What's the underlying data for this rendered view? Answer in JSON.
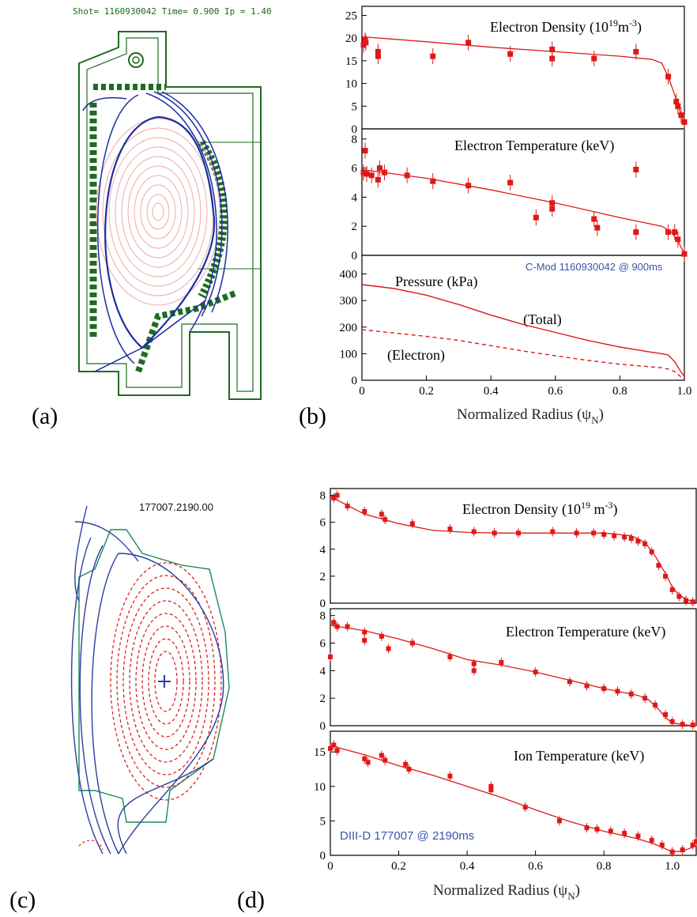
{
  "colors": {
    "data": "#e01818",
    "wall": "#1f6b1f",
    "flux": "#1a2fa0",
    "inner": "#f0a8a8",
    "blue_text": "#3b55a8"
  },
  "panel_labels": {
    "a": "(a)",
    "b": "(b)",
    "c": "(c)",
    "d": "(d)"
  },
  "panel_a": {
    "header": "Shot=  1160930042   Time= 0.900   Ip = 1.40"
  },
  "panel_c": {
    "label": "177007.2190.00"
  },
  "chart_data": [
    {
      "type": "scatter",
      "panel": "b-top",
      "title": "Electron Density (10^19 m^-3)",
      "ylim": [
        0,
        27
      ],
      "xlim": [
        0,
        1.0
      ],
      "yticks": [
        "0",
        "5",
        "10",
        "15",
        "20",
        "25"
      ],
      "points": [
        [
          0.005,
          18.5
        ],
        [
          0.01,
          19.5
        ],
        [
          0.012,
          19.0
        ],
        [
          0.05,
          17.0
        ],
        [
          0.05,
          16.0
        ],
        [
          0.22,
          16.0
        ],
        [
          0.33,
          19.0
        ],
        [
          0.46,
          16.5
        ],
        [
          0.59,
          17.5
        ],
        [
          0.59,
          15.5
        ],
        [
          0.72,
          15.5
        ],
        [
          0.85,
          17.0
        ],
        [
          0.95,
          11.5
        ],
        [
          0.975,
          6.0
        ],
        [
          0.98,
          5.0
        ],
        [
          0.99,
          3.0
        ],
        [
          1.0,
          1.5
        ]
      ],
      "fit": [
        [
          0,
          20.3
        ],
        [
          0.2,
          19.2
        ],
        [
          0.4,
          18.0
        ],
        [
          0.6,
          17.0
        ],
        [
          0.8,
          16.0
        ],
        [
          0.9,
          15.3
        ],
        [
          0.93,
          14.5
        ],
        [
          0.95,
          11.5
        ],
        [
          0.97,
          7.5
        ],
        [
          0.99,
          3.0
        ],
        [
          1.0,
          1.5
        ]
      ]
    },
    {
      "type": "scatter",
      "panel": "b-mid",
      "title": "Electron Temperature (keV)",
      "ylim": [
        0,
        8.7
      ],
      "xlim": [
        0,
        1.0
      ],
      "yticks": [
        "0",
        "2",
        "4",
        "6",
        "8"
      ],
      "points": [
        [
          0.005,
          5.7
        ],
        [
          0.01,
          7.2
        ],
        [
          0.015,
          5.6
        ],
        [
          0.03,
          5.5
        ],
        [
          0.05,
          5.2
        ],
        [
          0.055,
          6.0
        ],
        [
          0.07,
          5.7
        ],
        [
          0.14,
          5.5
        ],
        [
          0.22,
          5.1
        ],
        [
          0.33,
          4.8
        ],
        [
          0.46,
          5.0
        ],
        [
          0.54,
          2.6
        ],
        [
          0.59,
          3.6
        ],
        [
          0.59,
          3.2
        ],
        [
          0.72,
          2.5
        ],
        [
          0.73,
          1.9
        ],
        [
          0.85,
          5.9
        ],
        [
          0.85,
          1.6
        ],
        [
          0.95,
          1.6
        ],
        [
          0.97,
          1.6
        ],
        [
          0.98,
          1.1
        ],
        [
          1.0,
          0.1
        ]
      ],
      "fit": [
        [
          0,
          5.9
        ],
        [
          0.2,
          5.3
        ],
        [
          0.4,
          4.5
        ],
        [
          0.6,
          3.6
        ],
        [
          0.8,
          2.6
        ],
        [
          0.93,
          2.0
        ],
        [
          0.96,
          1.6
        ],
        [
          0.98,
          1.0
        ],
        [
          1.0,
          0.1
        ]
      ]
    },
    {
      "type": "line",
      "panel": "b-bot",
      "title": "Pressure (kPa)",
      "annotations": [
        "(Total)",
        "(Electron)"
      ],
      "note": "C-Mod 1160930042 @ 900ms",
      "ylim": [
        0,
        470
      ],
      "xlim": [
        0,
        1.0
      ],
      "yticks": [
        "0",
        "100",
        "200",
        "300",
        "400"
      ],
      "xticks": [
        "0",
        "0.2",
        "0.4",
        "0.6",
        "0.8",
        "1.0"
      ],
      "xlabel": "Normalized Radius (ψN)",
      "series": [
        {
          "name": "(Total)",
          "style": "solid",
          "x": [
            0,
            0.1,
            0.2,
            0.3,
            0.4,
            0.5,
            0.6,
            0.7,
            0.8,
            0.9,
            0.93,
            0.95,
            0.97,
            0.99,
            1.0
          ],
          "y": [
            360,
            345,
            320,
            285,
            245,
            210,
            180,
            150,
            125,
            105,
            100,
            95,
            70,
            30,
            15
          ]
        },
        {
          "name": "(Electron)",
          "style": "dashed",
          "x": [
            0,
            0.1,
            0.2,
            0.3,
            0.4,
            0.5,
            0.6,
            0.7,
            0.8,
            0.9,
            0.93,
            0.95,
            0.97,
            0.99,
            1.0
          ],
          "y": [
            190,
            178,
            165,
            150,
            130,
            110,
            92,
            75,
            60,
            50,
            47,
            42,
            32,
            12,
            5
          ]
        }
      ]
    },
    {
      "type": "scatter",
      "panel": "d-top",
      "title": "Electron Density (10^19 m^-3)",
      "ylim": [
        0,
        8.5
      ],
      "xlim": [
        0,
        1.07
      ],
      "yticks": [
        "0",
        "2",
        "4",
        "6",
        "8"
      ],
      "points": [
        [
          0.01,
          7.8
        ],
        [
          0.02,
          8.0
        ],
        [
          0.05,
          7.2
        ],
        [
          0.1,
          6.8
        ],
        [
          0.15,
          6.6
        ],
        [
          0.16,
          6.2
        ],
        [
          0.24,
          5.9
        ],
        [
          0.35,
          5.5
        ],
        [
          0.42,
          5.3
        ],
        [
          0.48,
          5.2
        ],
        [
          0.55,
          5.2
        ],
        [
          0.65,
          5.3
        ],
        [
          0.72,
          5.2
        ],
        [
          0.77,
          5.2
        ],
        [
          0.8,
          5.1
        ],
        [
          0.83,
          5.0
        ],
        [
          0.86,
          4.9
        ],
        [
          0.88,
          4.8
        ],
        [
          0.9,
          4.6
        ],
        [
          0.92,
          4.4
        ],
        [
          0.94,
          3.8
        ],
        [
          0.96,
          2.8
        ],
        [
          0.98,
          2.0
        ],
        [
          1.0,
          1.0
        ],
        [
          1.02,
          0.5
        ],
        [
          1.04,
          0.2
        ],
        [
          1.06,
          0.1
        ]
      ],
      "fit": [
        [
          0,
          7.9
        ],
        [
          0.1,
          6.6
        ],
        [
          0.2,
          5.9
        ],
        [
          0.3,
          5.4
        ],
        [
          0.4,
          5.25
        ],
        [
          0.5,
          5.2
        ],
        [
          0.6,
          5.2
        ],
        [
          0.7,
          5.2
        ],
        [
          0.8,
          5.2
        ],
        [
          0.88,
          5.0
        ],
        [
          0.92,
          4.5
        ],
        [
          0.95,
          3.5
        ],
        [
          0.98,
          2.2
        ],
        [
          1.0,
          1.2
        ],
        [
          1.02,
          0.6
        ],
        [
          1.05,
          0.2
        ],
        [
          1.07,
          0.1
        ]
      ]
    },
    {
      "type": "scatter",
      "panel": "d-mid",
      "title": "Electron Temperature (keV)",
      "ylim": [
        0,
        8.5
      ],
      "xlim": [
        0,
        1.07
      ],
      "yticks": [
        "0",
        "2",
        "4",
        "6",
        "8"
      ],
      "points": [
        [
          0.0,
          5.0
        ],
        [
          0.01,
          7.5
        ],
        [
          0.02,
          7.2
        ],
        [
          0.05,
          7.2
        ],
        [
          0.1,
          6.2
        ],
        [
          0.1,
          6.8
        ],
        [
          0.15,
          6.5
        ],
        [
          0.17,
          5.6
        ],
        [
          0.24,
          6.0
        ],
        [
          0.35,
          5.0
        ],
        [
          0.42,
          4.5
        ],
        [
          0.42,
          4.0
        ],
        [
          0.5,
          4.6
        ],
        [
          0.6,
          3.9
        ],
        [
          0.7,
          3.2
        ],
        [
          0.75,
          2.9
        ],
        [
          0.8,
          2.7
        ],
        [
          0.84,
          2.5
        ],
        [
          0.88,
          2.3
        ],
        [
          0.92,
          2.0
        ],
        [
          0.95,
          1.5
        ],
        [
          0.98,
          0.8
        ],
        [
          1.0,
          0.3
        ],
        [
          1.03,
          0.1
        ],
        [
          1.06,
          0.05
        ]
      ],
      "fit": [
        [
          0,
          7.3
        ],
        [
          0.1,
          6.9
        ],
        [
          0.2,
          6.3
        ],
        [
          0.3,
          5.6
        ],
        [
          0.4,
          4.8
        ],
        [
          0.5,
          4.4
        ],
        [
          0.6,
          3.9
        ],
        [
          0.7,
          3.3
        ],
        [
          0.8,
          2.7
        ],
        [
          0.9,
          2.2
        ],
        [
          0.93,
          1.9
        ],
        [
          0.96,
          1.2
        ],
        [
          0.98,
          0.6
        ],
        [
          1.0,
          0.2
        ],
        [
          1.04,
          0.05
        ],
        [
          1.07,
          0.0
        ]
      ]
    },
    {
      "type": "scatter",
      "panel": "d-bot",
      "title": "Ion Temperature (keV)",
      "note": "DIII-D 177007 @ 2190ms",
      "ylim": [
        0,
        18
      ],
      "xlim": [
        0,
        1.07
      ],
      "yticks": [
        "0",
        "5",
        "10",
        "15"
      ],
      "xticks": [
        "0",
        "0.2",
        "0.4",
        "0.6",
        "0.8",
        "1.0"
      ],
      "xlabel": "Normalized Radius (ψN)",
      "points": [
        [
          0.0,
          15.5
        ],
        [
          0.01,
          16.0
        ],
        [
          0.02,
          15.2
        ],
        [
          0.1,
          14.0
        ],
        [
          0.11,
          13.5
        ],
        [
          0.15,
          14.5
        ],
        [
          0.16,
          13.8
        ],
        [
          0.22,
          13.2
        ],
        [
          0.23,
          12.5
        ],
        [
          0.35,
          11.5
        ],
        [
          0.47,
          9.5
        ],
        [
          0.47,
          10.0
        ],
        [
          0.57,
          7.0
        ],
        [
          0.67,
          5.0
        ],
        [
          0.75,
          4.0
        ],
        [
          0.78,
          3.8
        ],
        [
          0.82,
          3.5
        ],
        [
          0.86,
          3.2
        ],
        [
          0.9,
          2.8
        ],
        [
          0.94,
          2.2
        ],
        [
          0.97,
          1.5
        ],
        [
          1.0,
          0.5
        ],
        [
          1.03,
          0.8
        ],
        [
          1.06,
          1.5
        ],
        [
          1.07,
          2.0
        ]
      ],
      "fit": [
        [
          0,
          15.9
        ],
        [
          0.1,
          14.6
        ],
        [
          0.2,
          13.0
        ],
        [
          0.3,
          11.6
        ],
        [
          0.4,
          10.0
        ],
        [
          0.5,
          8.4
        ],
        [
          0.6,
          6.6
        ],
        [
          0.7,
          4.9
        ],
        [
          0.8,
          3.5
        ],
        [
          0.9,
          2.4
        ],
        [
          0.95,
          1.6
        ],
        [
          1.0,
          0.5
        ],
        [
          1.03,
          0.6
        ],
        [
          1.07,
          1.4
        ]
      ]
    }
  ]
}
